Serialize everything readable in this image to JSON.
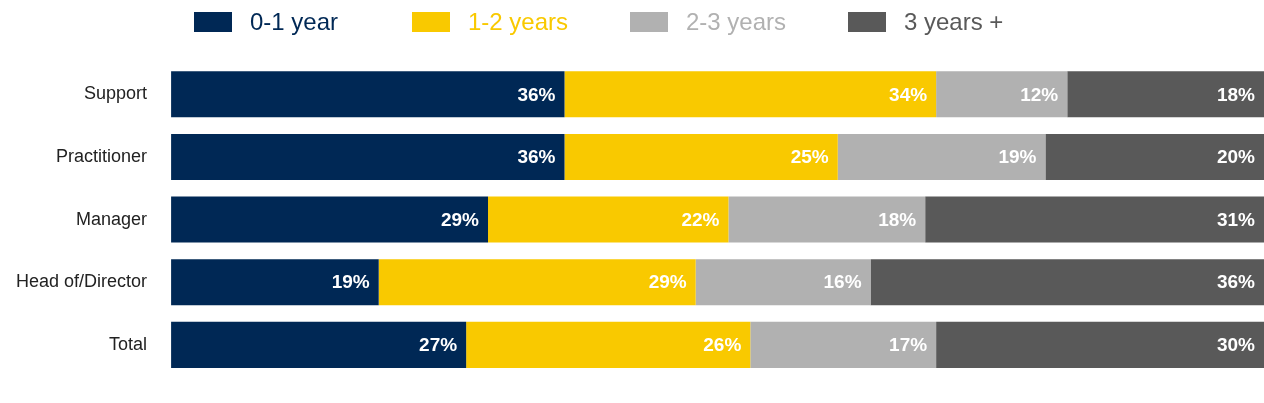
{
  "chart_data": {
    "type": "bar",
    "orientation": "horizontal",
    "stacked": true,
    "categories": [
      "Support",
      "Practitioner",
      "Manager",
      "Head of/Director",
      "Total"
    ],
    "series": [
      {
        "name": "0-1 year",
        "color": "#002855",
        "values": [
          36,
          36,
          29,
          19,
          27
        ],
        "value_labels": [
          "36%",
          "36%",
          "29%",
          "19%",
          "27%"
        ]
      },
      {
        "name": "1-2 years",
        "color": "#f9c900",
        "values": [
          34,
          25,
          22,
          29,
          26
        ],
        "value_labels": [
          "34%",
          "25%",
          "22%",
          "29%",
          "26%"
        ]
      },
      {
        "name": "2-3 years",
        "color": "#b1b1b1",
        "values": [
          12,
          19,
          18,
          16,
          17
        ],
        "value_labels": [
          "12%",
          "19%",
          "18%",
          "16%",
          "17%"
        ]
      },
      {
        "name": "3 years +",
        "color": "#595959",
        "values": [
          18,
          20,
          31,
          36,
          30
        ],
        "value_labels": [
          "18%",
          "20%",
          "31%",
          "36%",
          "30%"
        ]
      }
    ],
    "xlim": [
      0,
      100
    ],
    "tick_labels": "y",
    "legend": "top"
  }
}
